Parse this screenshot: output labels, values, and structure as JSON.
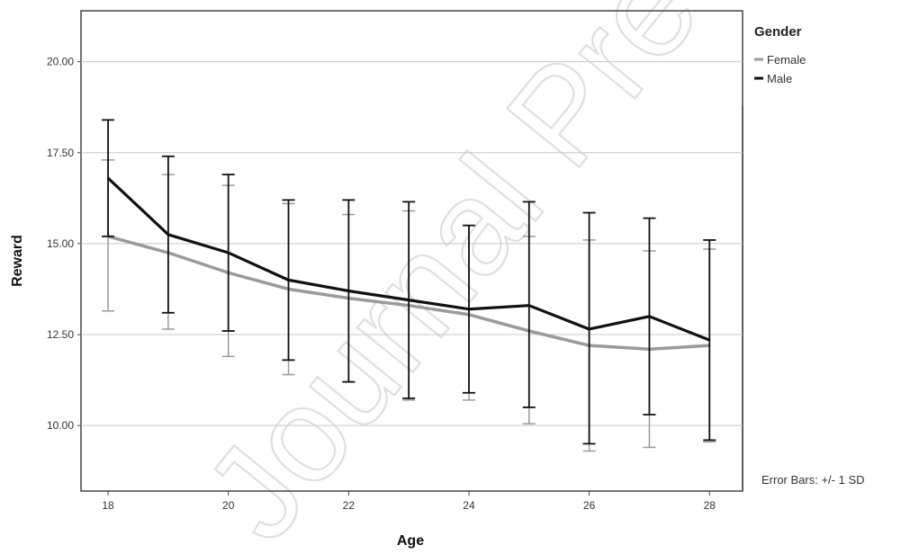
{
  "chart_data": {
    "type": "line",
    "xlabel": "Age",
    "ylabel": "Reward",
    "x": [
      18,
      19,
      20,
      21,
      22,
      23,
      24,
      25,
      26,
      27,
      28
    ],
    "x_ticks": [
      "18",
      "20",
      "22",
      "24",
      "26",
      "28"
    ],
    "y_ticks": [
      "10.00",
      "12.50",
      "15.00",
      "17.50",
      "20.00"
    ],
    "xlim": [
      17.55,
      28.55
    ],
    "ylim": [
      8.2,
      21.4
    ],
    "grid": true,
    "legend": {
      "title": "Gender",
      "placement": "right"
    },
    "series": [
      {
        "name": "Female",
        "color": "#9a9a9a",
        "values": [
          15.2,
          14.75,
          14.2,
          13.75,
          13.5,
          13.3,
          13.05,
          12.6,
          12.2,
          12.1,
          12.2
        ],
        "upper": [
          17.3,
          16.9,
          16.6,
          16.1,
          15.8,
          15.9,
          15.5,
          15.2,
          15.1,
          14.8,
          14.85
        ],
        "lower": [
          13.15,
          12.65,
          11.9,
          11.4,
          11.2,
          10.7,
          10.7,
          10.05,
          9.3,
          9.4,
          9.55
        ]
      },
      {
        "name": "Male",
        "color": "#111111",
        "values": [
          16.8,
          15.25,
          14.75,
          14.0,
          13.7,
          13.45,
          13.2,
          13.3,
          12.65,
          13.0,
          12.35
        ],
        "upper": [
          18.4,
          17.4,
          16.9,
          16.2,
          16.2,
          16.15,
          15.5,
          16.15,
          15.85,
          15.7,
          15.1
        ],
        "lower": [
          15.2,
          13.1,
          12.6,
          11.8,
          11.2,
          10.75,
          10.9,
          10.5,
          9.5,
          10.3,
          9.6
        ]
      }
    ],
    "annotation": "Error Bars: +/- 1 SD"
  },
  "watermark": "Journal Pre-proof"
}
